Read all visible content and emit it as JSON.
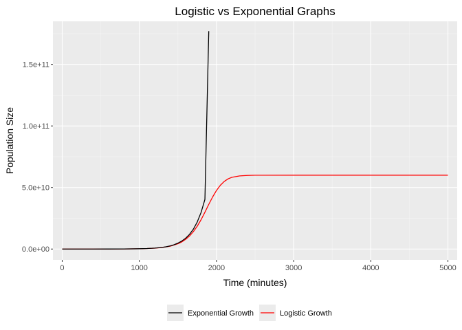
{
  "chart_data": {
    "type": "line",
    "title": "Logistic vs Exponential Graphs",
    "xlabel": "Time (minutes)",
    "ylabel": "Population Size",
    "xlim": [
      -120,
      5120
    ],
    "ylim": [
      -8800000000.0,
      185000000000.0
    ],
    "x_ticks": [
      0,
      1000,
      2000,
      3000,
      4000,
      5000
    ],
    "x_tick_labels": [
      "0",
      "1000",
      "2000",
      "3000",
      "4000",
      "5000"
    ],
    "y_ticks": [
      0,
      50000000000,
      100000000000,
      150000000000
    ],
    "y_tick_labels": [
      "0.0e+00",
      "5.0e+10",
      "1.0e+11",
      "1.5e+11"
    ],
    "grid": true,
    "background": "#ebebeb",
    "legend_position": "bottom",
    "series": [
      {
        "name": "Exponential Growth",
        "color": "#000000",
        "x": [
          0,
          200,
          400,
          600,
          800,
          1000,
          1100,
          1200,
          1300,
          1350,
          1400,
          1450,
          1500,
          1550,
          1600,
          1650,
          1700,
          1750,
          1800,
          1850,
          1900
        ],
        "y": [
          0,
          1000000,
          5000000,
          20000000,
          70000000,
          230000000,
          430000000,
          780000000,
          1400000000,
          1900000000,
          2600000000,
          3500000000,
          4800000000,
          6500000000,
          8800000000,
          11900000000,
          16100000000,
          21900000000,
          29700000000,
          40300000000,
          177000000000
        ]
      },
      {
        "name": "Logistic Growth",
        "color": "#ff0000",
        "x": [
          0,
          200,
          400,
          600,
          800,
          1000,
          1100,
          1200,
          1300,
          1400,
          1500,
          1550,
          1600,
          1650,
          1700,
          1750,
          1800,
          1850,
          1900,
          1950,
          2000,
          2050,
          2100,
          2150,
          2200,
          2300,
          2400,
          2500,
          3000,
          4000,
          5000
        ],
        "y": [
          0,
          1000000,
          5000000,
          20000000,
          70000000,
          220000000,
          400000000,
          720000000,
          1300000000,
          2300000000,
          4300000000,
          5800000000,
          7900000000,
          10600000000,
          14100000000,
          18500000000,
          23800000000,
          29900000000,
          36300000000,
          42300000000,
          47600000000,
          51800000000,
          54900000000,
          57000000000,
          58300000000,
          59400000000,
          59800000000,
          59950000000,
          60000000000,
          60000000000,
          60000000000
        ]
      }
    ]
  }
}
